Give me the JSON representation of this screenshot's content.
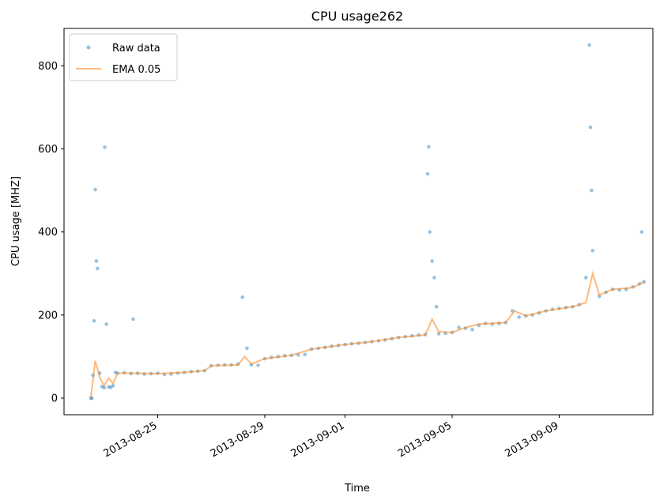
{
  "chart_data": {
    "type": "scatter",
    "title": "CPU usage262",
    "xlabel": "Time",
    "ylabel": "CPU usage [MHZ]",
    "x_ticks": [
      "2013-08-25",
      "2013-08-29",
      "2013-09-01",
      "2013-09-05",
      "2013-09-09"
    ],
    "y_ticks": [
      0,
      200,
      400,
      600,
      800
    ],
    "xlim": [
      "2013-08-21T12:00",
      "2013-09-12T12:00"
    ],
    "ylim": [
      -40,
      890
    ],
    "grid": false,
    "legend_position": "top-left",
    "colors": {
      "raw": "#1f77b4",
      "ema": "#ff7f0e"
    },
    "series": [
      {
        "name": "Raw data",
        "kind": "scatter",
        "points": [
          [
            "2013-08-22T12:00",
            0
          ],
          [
            "2013-08-22T13:00",
            0
          ],
          [
            "2013-08-22T14:00",
            55
          ],
          [
            "2013-08-22T15:00",
            186
          ],
          [
            "2013-08-22T16:00",
            502
          ],
          [
            "2013-08-22T17:00",
            330
          ],
          [
            "2013-08-22T18:00",
            312
          ],
          [
            "2013-08-22T20:00",
            60
          ],
          [
            "2013-08-22T22:00",
            28
          ],
          [
            "2013-08-23T00:00",
            25
          ],
          [
            "2013-08-23T00:30",
            604
          ],
          [
            "2013-08-23T02:00",
            178
          ],
          [
            "2013-08-23T04:00",
            27
          ],
          [
            "2013-08-23T06:00",
            26
          ],
          [
            "2013-08-23T08:00",
            30
          ],
          [
            "2013-08-23T10:00",
            62
          ],
          [
            "2013-08-23T12:00",
            60
          ],
          [
            "2013-08-23T18:00",
            61
          ],
          [
            "2013-08-24T00:00",
            59
          ],
          [
            "2013-08-24T02:00",
            190
          ],
          [
            "2013-08-24T06:00",
            60
          ],
          [
            "2013-08-24T12:00",
            58
          ],
          [
            "2013-08-24T18:00",
            59
          ],
          [
            "2013-08-25T00:00",
            60
          ],
          [
            "2013-08-25T06:00",
            57
          ],
          [
            "2013-08-25T12:00",
            58
          ],
          [
            "2013-08-25T18:00",
            60
          ],
          [
            "2013-08-26T00:00",
            62
          ],
          [
            "2013-08-26T06:00",
            64
          ],
          [
            "2013-08-26T12:00",
            65
          ],
          [
            "2013-08-26T18:00",
            66
          ],
          [
            "2013-08-27T00:00",
            78
          ],
          [
            "2013-08-27T06:00",
            79
          ],
          [
            "2013-08-27T12:00",
            80
          ],
          [
            "2013-08-27T18:00",
            80
          ],
          [
            "2013-08-28T00:00",
            82
          ],
          [
            "2013-08-28T04:00",
            243
          ],
          [
            "2013-08-28T08:00",
            120
          ],
          [
            "2013-08-28T12:00",
            80
          ],
          [
            "2013-08-28T18:00",
            79
          ],
          [
            "2013-08-29T00:00",
            95
          ],
          [
            "2013-08-29T06:00",
            98
          ],
          [
            "2013-08-29T12:00",
            100
          ],
          [
            "2013-08-29T18:00",
            102
          ],
          [
            "2013-08-30T00:00",
            103
          ],
          [
            "2013-08-30T06:00",
            104
          ],
          [
            "2013-08-30T12:00",
            105
          ],
          [
            "2013-08-30T18:00",
            118
          ],
          [
            "2013-08-31T00:00",
            120
          ],
          [
            "2013-08-31T06:00",
            122
          ],
          [
            "2013-08-31T12:00",
            125
          ],
          [
            "2013-08-31T18:00",
            127
          ],
          [
            "2013-09-01T00:00",
            129
          ],
          [
            "2013-09-01T06:00",
            131
          ],
          [
            "2013-09-01T12:00",
            132
          ],
          [
            "2013-09-01T18:00",
            134
          ],
          [
            "2013-09-02T00:00",
            136
          ],
          [
            "2013-09-02T06:00",
            138
          ],
          [
            "2013-09-02T12:00",
            140
          ],
          [
            "2013-09-02T18:00",
            143
          ],
          [
            "2013-09-03T00:00",
            146
          ],
          [
            "2013-09-03T06:00",
            148
          ],
          [
            "2013-09-03T12:00",
            150
          ],
          [
            "2013-09-03T18:00",
            152
          ],
          [
            "2013-09-04T00:00",
            153
          ],
          [
            "2013-09-04T03:00",
            605
          ],
          [
            "2013-09-04T02:00",
            540
          ],
          [
            "2013-09-04T04:00",
            400
          ],
          [
            "2013-09-04T06:00",
            330
          ],
          [
            "2013-09-04T08:00",
            290
          ],
          [
            "2013-09-04T10:00",
            220
          ],
          [
            "2013-09-04T12:00",
            155
          ],
          [
            "2013-09-04T18:00",
            156
          ],
          [
            "2013-09-05T00:00",
            158
          ],
          [
            "2013-09-05T06:00",
            170
          ],
          [
            "2013-09-05T12:00",
            168
          ],
          [
            "2013-09-05T18:00",
            165
          ],
          [
            "2013-09-06T00:00",
            175
          ],
          [
            "2013-09-06T06:00",
            180
          ],
          [
            "2013-09-06T12:00",
            178
          ],
          [
            "2013-09-06T18:00",
            180
          ],
          [
            "2013-09-07T00:00",
            182
          ],
          [
            "2013-09-07T06:00",
            210
          ],
          [
            "2013-09-07T12:00",
            195
          ],
          [
            "2013-09-07T18:00",
            198
          ],
          [
            "2013-09-08T00:00",
            200
          ],
          [
            "2013-09-08T06:00",
            205
          ],
          [
            "2013-09-08T12:00",
            210
          ],
          [
            "2013-09-08T18:00",
            214
          ],
          [
            "2013-09-09T00:00",
            216
          ],
          [
            "2013-09-09T06:00",
            218
          ],
          [
            "2013-09-09T12:00",
            220
          ],
          [
            "2013-09-09T18:00",
            225
          ],
          [
            "2013-09-10T00:00",
            290
          ],
          [
            "2013-09-10T03:00",
            850
          ],
          [
            "2013-09-10T04:00",
            652
          ],
          [
            "2013-09-10T05:00",
            500
          ],
          [
            "2013-09-10T06:00",
            355
          ],
          [
            "2013-09-10T12:00",
            245
          ],
          [
            "2013-09-10T18:00",
            255
          ],
          [
            "2013-09-11T00:00",
            262
          ],
          [
            "2013-09-11T06:00",
            260
          ],
          [
            "2013-09-11T12:00",
            262
          ],
          [
            "2013-09-11T18:00",
            268
          ],
          [
            "2013-09-12T00:00",
            275
          ],
          [
            "2013-09-12T02:00",
            400
          ],
          [
            "2013-09-12T04:00",
            280
          ]
        ]
      },
      {
        "name": "EMA 0.05",
        "kind": "line",
        "points": [
          [
            "2013-08-22T12:00",
            0
          ],
          [
            "2013-08-22T16:00",
            90
          ],
          [
            "2013-08-22T20:00",
            50
          ],
          [
            "2013-08-23T00:00",
            30
          ],
          [
            "2013-08-23T04:00",
            48
          ],
          [
            "2013-08-23T08:00",
            35
          ],
          [
            "2013-08-23T12:00",
            60
          ],
          [
            "2013-08-24T00:00",
            60
          ],
          [
            "2013-08-25T00:00",
            59
          ],
          [
            "2013-08-26T00:00",
            62
          ],
          [
            "2013-08-26T18:00",
            66
          ],
          [
            "2013-08-27T00:00",
            78
          ],
          [
            "2013-08-28T00:00",
            80
          ],
          [
            "2013-08-28T06:00",
            100
          ],
          [
            "2013-08-28T12:00",
            82
          ],
          [
            "2013-08-29T00:00",
            95
          ],
          [
            "2013-08-30T00:00",
            103
          ],
          [
            "2013-08-30T18:00",
            118
          ],
          [
            "2013-09-01T00:00",
            129
          ],
          [
            "2013-09-02T00:00",
            136
          ],
          [
            "2013-09-03T00:00",
            146
          ],
          [
            "2013-09-04T00:00",
            152
          ],
          [
            "2013-09-04T06:00",
            190
          ],
          [
            "2013-09-04T12:00",
            160
          ],
          [
            "2013-09-05T00:00",
            158
          ],
          [
            "2013-09-05T12:00",
            170
          ],
          [
            "2013-09-06T00:00",
            178
          ],
          [
            "2013-09-07T00:00",
            182
          ],
          [
            "2013-09-07T08:00",
            210
          ],
          [
            "2013-09-07T18:00",
            198
          ],
          [
            "2013-09-08T12:00",
            210
          ],
          [
            "2013-09-09T12:00",
            220
          ],
          [
            "2013-09-10T00:00",
            230
          ],
          [
            "2013-09-10T06:00",
            300
          ],
          [
            "2013-09-10T12:00",
            248
          ],
          [
            "2013-09-11T00:00",
            262
          ],
          [
            "2013-09-11T18:00",
            266
          ],
          [
            "2013-09-12T04:00",
            280
          ]
        ]
      }
    ]
  }
}
